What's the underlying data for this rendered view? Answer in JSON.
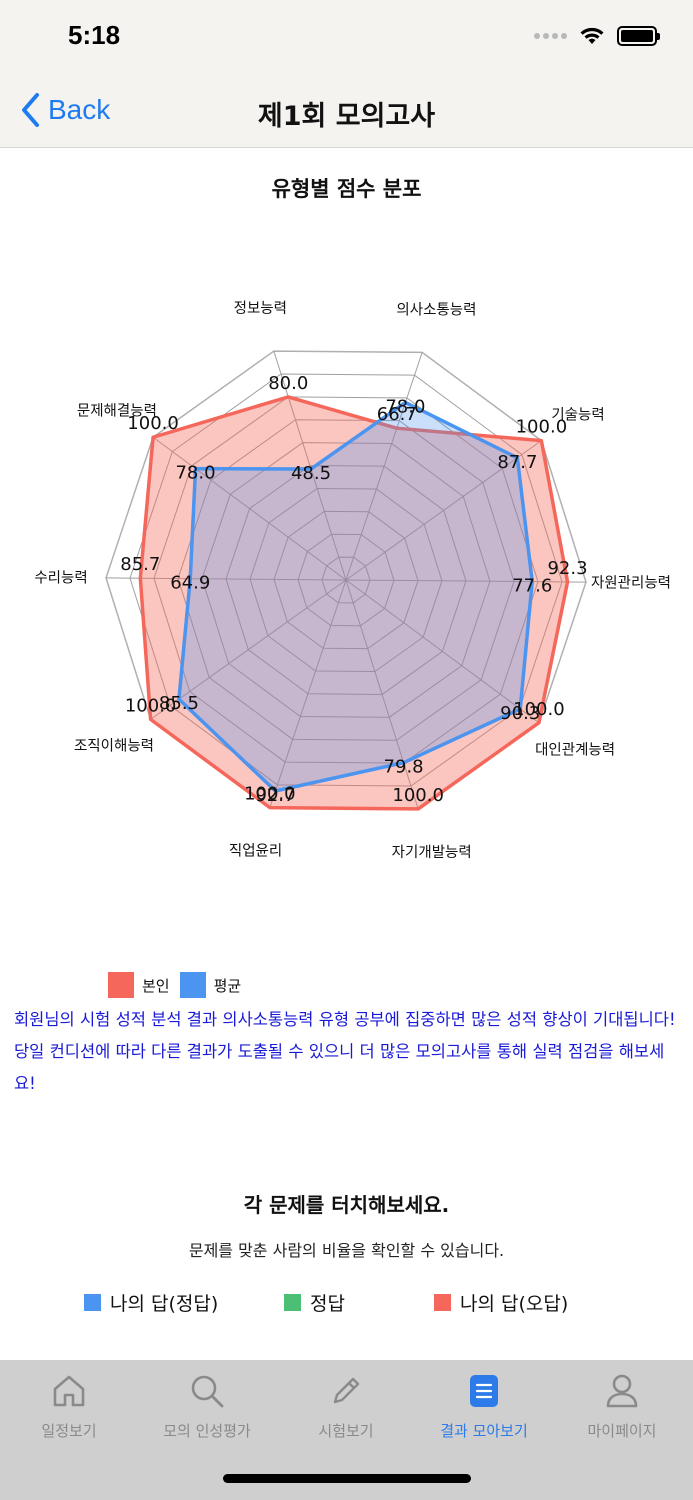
{
  "status_bar": {
    "time": "5:18"
  },
  "nav": {
    "back_label": "Back",
    "title": "제1회 모의고사"
  },
  "chart_title": "유형별 점수 분포",
  "chart_data": {
    "type": "radar",
    "title": "유형별 점수 분포",
    "categories": [
      "의사소통능력",
      "기술능력",
      "자원관리능력",
      "대인관계능력",
      "자기개발능력",
      "직업윤리",
      "조직이해능력",
      "수리능력",
      "문제해결능력",
      "정보능력"
    ],
    "series": [
      {
        "name": "본인",
        "values": [
          66.7,
          100.0,
          92.3,
          100.0,
          100.0,
          100.0,
          100.0,
          85.7,
          100.0,
          80.0
        ],
        "color": "#f4675a"
      },
      {
        "name": "평균",
        "values": [
          78.0,
          87.7,
          77.6,
          90.3,
          79.8,
          92.7,
          85.5,
          64.9,
          78.0,
          48.5
        ],
        "color": "#4b94ef"
      }
    ],
    "range": [
      0,
      100
    ],
    "grid": true,
    "legend_position": "bottom-left"
  },
  "message": "회원님의 시험 성적 분석 결과 의사소통능력 유형 공부에 집중하면 많은 성적 향상이 기대됩니다! 당일 컨디션에 따라 다른 결과가 도출될 수 있으니 더 많은 모의고사를 통해 실력 점검을 해보세요!",
  "touch": {
    "title": "각 문제를 터치해보세요.",
    "subtitle": "문제를 맞춘 사람의 비율을 확인할 수 있습니다."
  },
  "answer_legend": [
    {
      "label": "나의 답(정답)",
      "color": "#4b94ef"
    },
    {
      "label": "정답",
      "color": "#4cbf75"
    },
    {
      "label": "나의 답(오답)",
      "color": "#f4675a"
    }
  ],
  "tabs": [
    {
      "label": "일정보기",
      "icon": "home-icon",
      "active": false
    },
    {
      "label": "모의 인성평가",
      "icon": "search-icon",
      "active": false
    },
    {
      "label": "시험보기",
      "icon": "pencil-icon",
      "active": false
    },
    {
      "label": "결과 모아보기",
      "icon": "list-icon",
      "active": true
    },
    {
      "label": "마이페이지",
      "icon": "person-icon",
      "active": false
    }
  ],
  "colors": {
    "accent": "#2d7be8",
    "message": "#1a1ad6"
  }
}
